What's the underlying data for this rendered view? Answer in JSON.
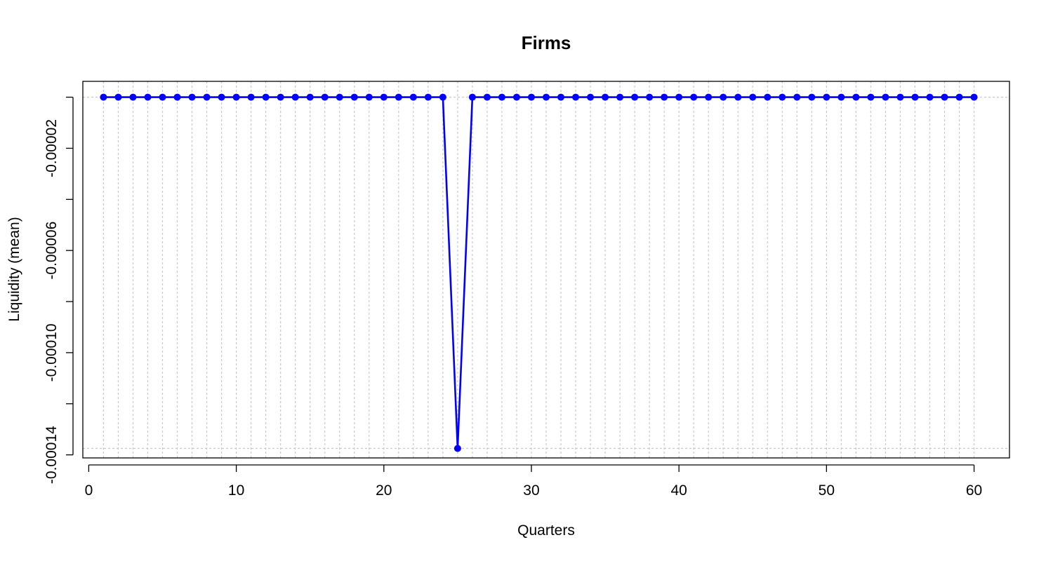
{
  "chart_data": {
    "type": "line",
    "title": "Firms",
    "xlabel": "Quarters",
    "ylabel": "Liquidity (mean)",
    "xlim": [
      -0.4,
      62.4
    ],
    "ylim": [
      -0.0001412,
      6.2e-06
    ],
    "x_ticks": [
      0,
      10,
      20,
      30,
      40,
      50,
      60
    ],
    "x_tick_labels": [
      "0",
      "10",
      "20",
      "30",
      "40",
      "50",
      "60"
    ],
    "y_ticks": [
      -0.00014,
      -0.00012,
      -0.0001,
      -8e-05,
      -6e-05,
      -4e-05,
      -2e-05,
      0
    ],
    "y_tick_labels": [
      "-0.00014",
      "",
      "-0.00010",
      "",
      "-0.00006",
      "",
      "-0.00002",
      ""
    ],
    "grid": true,
    "series_color": "#0000ff",
    "x": [
      1,
      2,
      3,
      4,
      5,
      6,
      7,
      8,
      9,
      10,
      11,
      12,
      13,
      14,
      15,
      16,
      17,
      18,
      19,
      20,
      21,
      22,
      23,
      24,
      25,
      26,
      27,
      28,
      29,
      30,
      31,
      32,
      33,
      34,
      35,
      36,
      37,
      38,
      39,
      40,
      41,
      42,
      43,
      44,
      45,
      46,
      47,
      48,
      49,
      50,
      51,
      52,
      53,
      54,
      55,
      56,
      57,
      58,
      59,
      60
    ],
    "values": [
      0,
      0,
      0,
      0,
      0,
      0,
      0,
      0,
      0,
      0,
      0,
      0,
      0,
      0,
      0,
      0,
      0,
      0,
      0,
      0,
      0,
      0,
      0,
      0,
      -0.0001375,
      0,
      0,
      0,
      0,
      0,
      0,
      0,
      0,
      0,
      0,
      0,
      0,
      0,
      0,
      0,
      0,
      0,
      0,
      0,
      0,
      0,
      0,
      0,
      0,
      0,
      0,
      0,
      0,
      0,
      0,
      0,
      0,
      0,
      0,
      0
    ]
  }
}
